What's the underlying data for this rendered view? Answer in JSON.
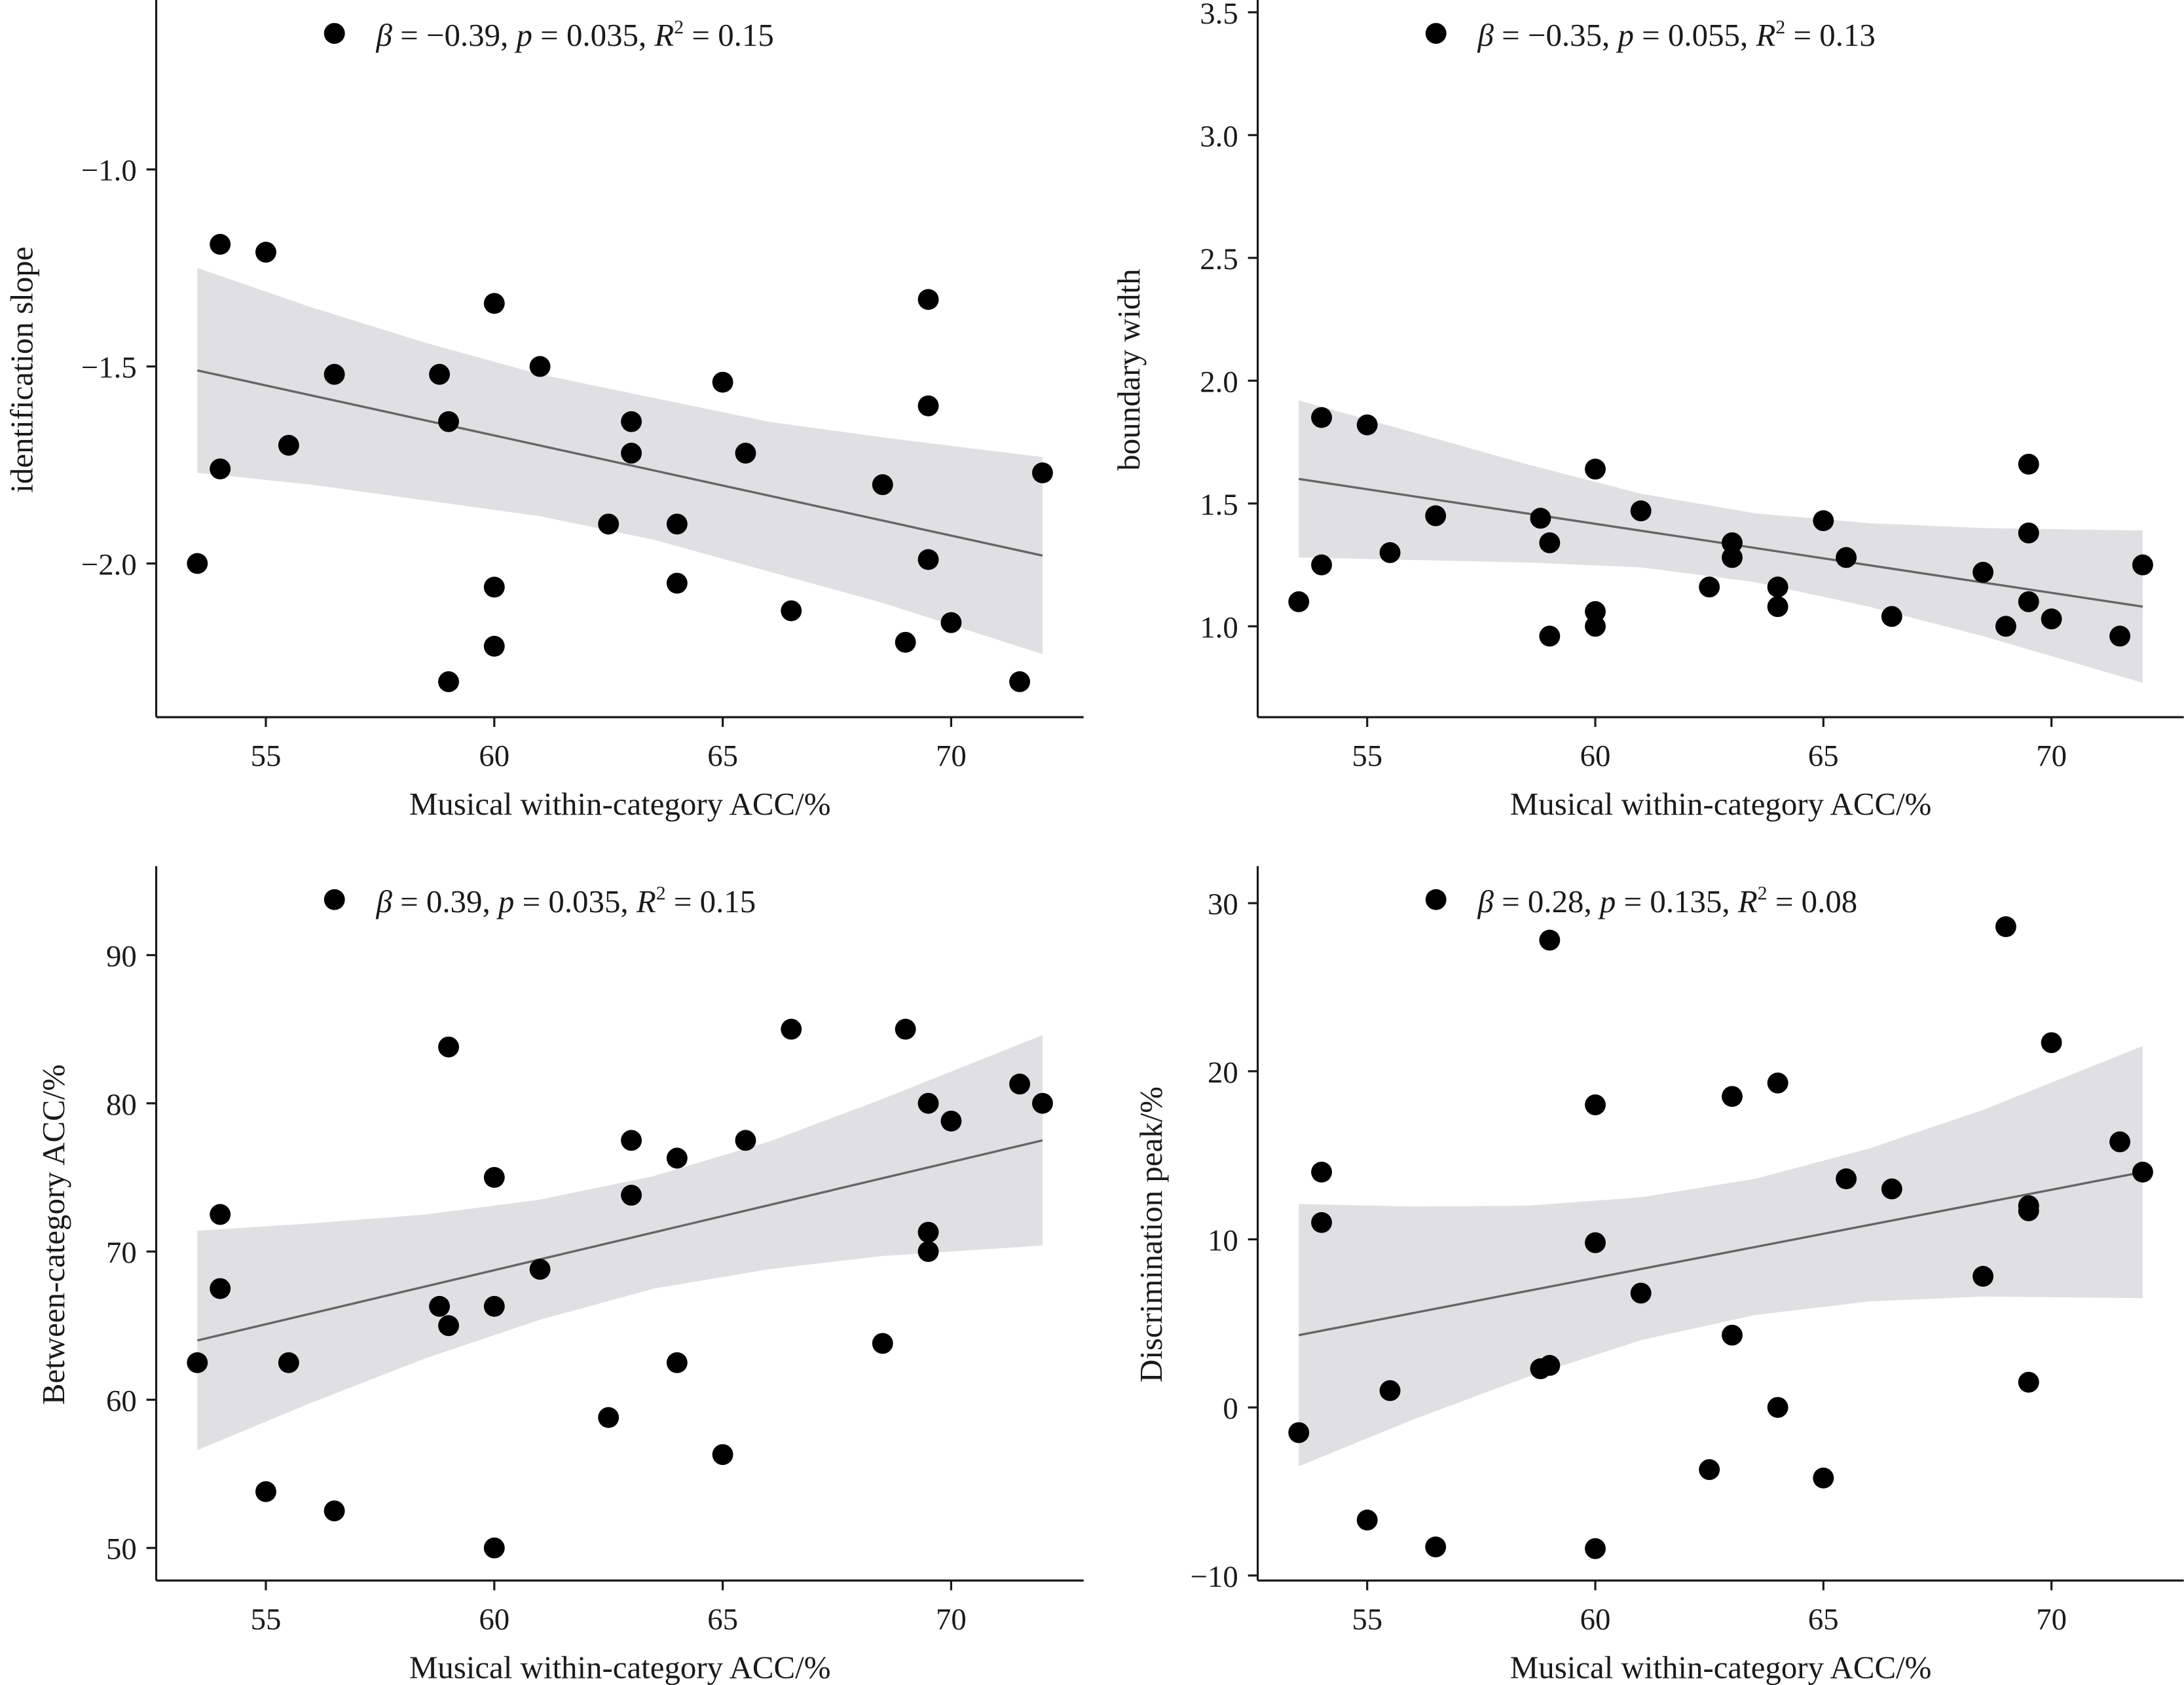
{
  "chart_data": [
    {
      "type": "scatter",
      "xlabel": "Musical within-category ACC/%",
      "ylabel": "identification slope",
      "xlim": [
        52.6,
        72.9
      ],
      "ylim": [
        -2.39,
        -0.57
      ],
      "xticks": [
        55,
        60,
        65,
        70
      ],
      "xtick_labels": [
        "55",
        "60",
        "65",
        "70"
      ],
      "yticks": [
        -2.0,
        -1.5,
        -1.0
      ],
      "ytick_labels": [
        "−2.0",
        "−1.5",
        "−1.0"
      ],
      "annotation": {
        "beta": "−0.39",
        "p": "0.035",
        "R2": "0.15"
      },
      "points": [
        [
          53.5,
          -2.0
        ],
        [
          54,
          -1.19
        ],
        [
          54,
          -1.76
        ],
        [
          55,
          -1.21
        ],
        [
          55.5,
          -1.7
        ],
        [
          56.5,
          -1.52
        ],
        [
          58.8,
          -1.52
        ],
        [
          59,
          -1.64
        ],
        [
          59,
          -2.3
        ],
        [
          60,
          -1.34
        ],
        [
          60,
          -2.06
        ],
        [
          60,
          -2.21
        ],
        [
          61,
          -1.5
        ],
        [
          62.5,
          -1.9
        ],
        [
          63,
          -1.64
        ],
        [
          63,
          -1.72
        ],
        [
          64,
          -1.9
        ],
        [
          64,
          -2.05
        ],
        [
          65,
          -1.54
        ],
        [
          65.5,
          -1.72
        ],
        [
          66.5,
          -2.12
        ],
        [
          68.5,
          -1.8
        ],
        [
          69,
          -2.2
        ],
        [
          69.5,
          -1.33
        ],
        [
          69.5,
          -1.6
        ],
        [
          69.5,
          -1.99
        ],
        [
          70,
          -2.15
        ],
        [
          71.5,
          -2.3
        ],
        [
          72,
          -1.77
        ]
      ],
      "fit_line": [
        [
          53.5,
          -1.51
        ],
        [
          72,
          -1.98
        ]
      ],
      "ci": {
        "x": [
          53.5,
          56,
          58.5,
          61,
          63.5,
          66,
          68.5,
          72
        ],
        "upper": [
          -1.25,
          -1.35,
          -1.44,
          -1.52,
          -1.58,
          -1.64,
          -1.68,
          -1.73
        ],
        "lower": [
          -1.77,
          -1.8,
          -1.84,
          -1.88,
          -1.94,
          -2.02,
          -2.1,
          -2.23
        ]
      }
    },
    {
      "type": "scatter",
      "xlabel": "Musical within-category ACC/%",
      "ylabel": "boundary width",
      "xlim": [
        52.6,
        72.9
      ],
      "ylim": [
        0.63,
        3.55
      ],
      "xticks": [
        55,
        60,
        65,
        70
      ],
      "xtick_labels": [
        "55",
        "60",
        "65",
        "70"
      ],
      "yticks": [
        1.0,
        1.5,
        2.0,
        2.5,
        3.0,
        3.5
      ],
      "ytick_labels": [
        "1.0",
        "1.5",
        "2.0",
        "2.5",
        "3.0",
        "3.5"
      ],
      "annotation": {
        "beta": "−0.35",
        "p": "0.055",
        "R2": "0.13"
      },
      "points": [
        [
          53.5,
          1.1
        ],
        [
          54,
          1.85
        ],
        [
          54,
          1.25
        ],
        [
          55,
          1.82
        ],
        [
          55.5,
          1.3
        ],
        [
          56.5,
          1.45
        ],
        [
          58.8,
          1.44
        ],
        [
          59,
          1.34
        ],
        [
          59,
          0.96
        ],
        [
          60,
          1.64
        ],
        [
          60,
          1.06
        ],
        [
          60,
          1.0
        ],
        [
          61,
          1.47
        ],
        [
          62.5,
          1.16
        ],
        [
          63,
          1.34
        ],
        [
          63,
          1.28
        ],
        [
          64,
          1.16
        ],
        [
          64,
          1.08
        ],
        [
          65,
          1.43
        ],
        [
          65.5,
          1.28
        ],
        [
          66.5,
          1.04
        ],
        [
          68.5,
          1.22
        ],
        [
          69,
          1.0
        ],
        [
          69.5,
          1.66
        ],
        [
          69.5,
          1.38
        ],
        [
          69.5,
          1.1
        ],
        [
          70,
          1.03
        ],
        [
          71.5,
          0.96
        ],
        [
          72,
          1.25
        ]
      ],
      "fit_line": [
        [
          53.5,
          1.6
        ],
        [
          72,
          1.08
        ]
      ],
      "ci": {
        "x": [
          53.5,
          56,
          58.5,
          61,
          63.5,
          66,
          68.5,
          72
        ],
        "upper": [
          1.92,
          1.79,
          1.66,
          1.54,
          1.46,
          1.42,
          1.4,
          1.39
        ],
        "lower": [
          1.28,
          1.27,
          1.26,
          1.24,
          1.18,
          1.08,
          0.96,
          0.77
        ]
      }
    },
    {
      "type": "scatter",
      "xlabel": "Musical within-category ACC/%",
      "ylabel": "Between-category ACC/%",
      "xlim": [
        52.6,
        72.9
      ],
      "ylim": [
        47.8,
        96
      ],
      "xticks": [
        55,
        60,
        65,
        70
      ],
      "xtick_labels": [
        "55",
        "60",
        "65",
        "70"
      ],
      "yticks": [
        50,
        60,
        70,
        80,
        90
      ],
      "ytick_labels": [
        "50",
        "60",
        "70",
        "80",
        "90"
      ],
      "annotation": {
        "beta": "0.39",
        "p": "0.035",
        "R2": "0.15"
      },
      "points": [
        [
          53.5,
          62.5
        ],
        [
          54,
          72.5
        ],
        [
          54,
          67.5
        ],
        [
          55,
          53.8
        ],
        [
          55.5,
          62.5
        ],
        [
          56.5,
          52.5
        ],
        [
          58.8,
          66.3
        ],
        [
          59,
          83.8
        ],
        [
          59,
          65.0
        ],
        [
          60,
          75.0
        ],
        [
          60,
          66.3
        ],
        [
          60,
          50.0
        ],
        [
          61,
          68.8
        ],
        [
          62.5,
          58.8
        ],
        [
          63,
          77.5
        ],
        [
          63,
          73.8
        ],
        [
          64,
          76.3
        ],
        [
          64,
          62.5
        ],
        [
          65,
          56.3
        ],
        [
          65.5,
          77.5
        ],
        [
          66.5,
          85.0
        ],
        [
          68.5,
          63.8
        ],
        [
          69,
          85.0
        ],
        [
          69.5,
          80.0
        ],
        [
          69.5,
          71.3
        ],
        [
          69.5,
          70.0
        ],
        [
          70,
          78.8
        ],
        [
          71.5,
          81.3
        ],
        [
          72,
          80.0
        ]
      ],
      "fit_line": [
        [
          53.5,
          64.0
        ],
        [
          72,
          77.5
        ]
      ],
      "ci": {
        "x": [
          53.5,
          56,
          58.5,
          61,
          63.5,
          66,
          68.5,
          72
        ],
        "upper": [
          71.4,
          71.9,
          72.5,
          73.5,
          75.1,
          77.4,
          80.3,
          84.6
        ],
        "lower": [
          56.6,
          59.8,
          62.8,
          65.4,
          67.5,
          68.8,
          69.7,
          70.4
        ]
      }
    },
    {
      "type": "scatter",
      "xlabel": "Musical within-category ACC/%",
      "ylabel": "Discrimination peak/%",
      "xlim": [
        52.6,
        72.9
      ],
      "ylim": [
        -10.3,
        32.2
      ],
      "xticks": [
        55,
        60,
        65,
        70
      ],
      "xtick_labels": [
        "55",
        "60",
        "65",
        "70"
      ],
      "yticks": [
        -10,
        0,
        10,
        20,
        30
      ],
      "ytick_labels": [
        "−10",
        "0",
        "10",
        "20",
        "30"
      ],
      "annotation": {
        "beta": "0.28",
        "p": "0.135",
        "R2": "0.08"
      },
      "points": [
        [
          53.5,
          -1.5
        ],
        [
          54,
          14.0
        ],
        [
          54,
          11.0
        ],
        [
          55,
          -6.7
        ],
        [
          55.5,
          1.0
        ],
        [
          56.5,
          -8.3
        ],
        [
          58.8,
          2.3
        ],
        [
          59,
          27.8
        ],
        [
          59,
          2.5
        ],
        [
          60,
          18.0
        ],
        [
          60,
          9.8
        ],
        [
          60,
          -8.4
        ],
        [
          61,
          6.8
        ],
        [
          62.5,
          -3.7
        ],
        [
          63,
          18.5
        ],
        [
          63,
          4.3
        ],
        [
          64,
          19.3
        ],
        [
          64,
          0.0
        ],
        [
          65,
          -4.2
        ],
        [
          65.5,
          13.6
        ],
        [
          66.5,
          13.0
        ],
        [
          68.5,
          7.8
        ],
        [
          69,
          28.6
        ],
        [
          69.5,
          12.0
        ],
        [
          69.5,
          11.7
        ],
        [
          69.5,
          1.5
        ],
        [
          70,
          21.7
        ],
        [
          71.5,
          15.8
        ],
        [
          72,
          14.0
        ]
      ],
      "fit_line": [
        [
          53.5,
          4.3
        ],
        [
          72,
          14.0
        ]
      ],
      "ci": {
        "x": [
          53.5,
          56,
          58.5,
          61,
          63.5,
          66,
          68.5,
          72
        ],
        "upper": [
          12.1,
          11.95,
          12.0,
          12.5,
          13.6,
          15.4,
          17.7,
          21.5
        ],
        "lower": [
          -3.5,
          -0.73,
          1.8,
          4.0,
          5.5,
          6.3,
          6.6,
          6.5
        ]
      }
    }
  ],
  "colors": {
    "points": "#000000",
    "fit_line": "#666666",
    "ci_band": "#e0e0e3",
    "axis": "#1a1a1a"
  }
}
